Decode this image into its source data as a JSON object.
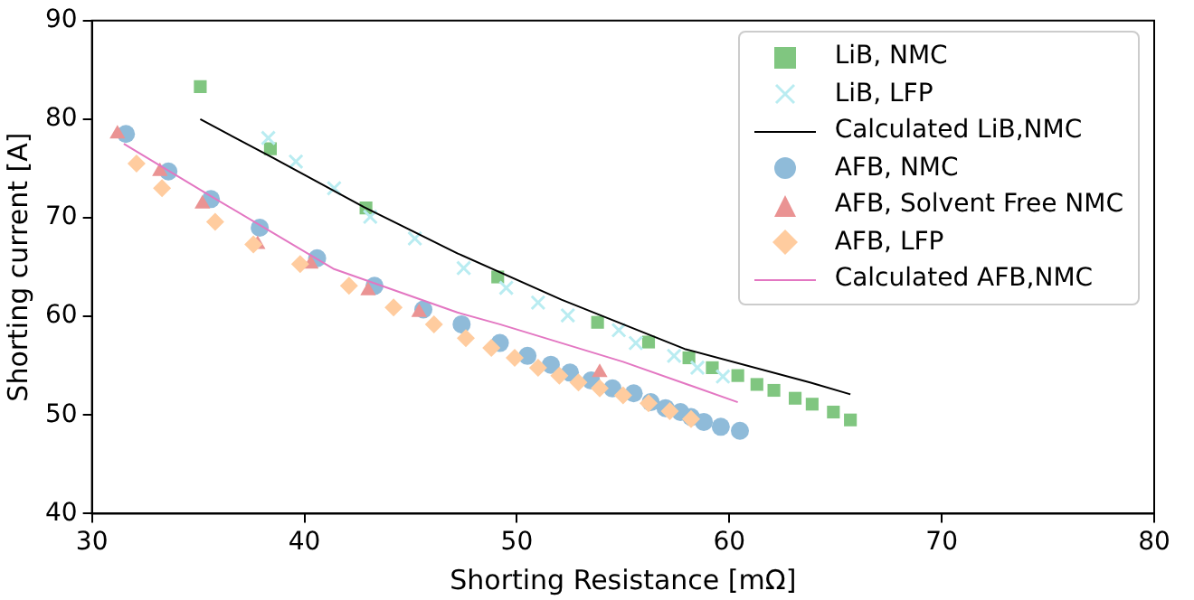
{
  "chart_data": {
    "type": "scatter",
    "xlabel": "Shorting Resistance [mΩ]",
    "ylabel": "Shorting current [A]",
    "xlim": [
      30,
      80
    ],
    "xticks": [
      30,
      40,
      50,
      60,
      70,
      80
    ],
    "ylim": [
      40,
      90
    ],
    "yticks": [
      40,
      50,
      60,
      70,
      80,
      90
    ],
    "grid": false,
    "legend": "top right",
    "series": [
      {
        "name": "LiB, NMC",
        "color": "#80c680",
        "marker": "square",
        "x": [
          35.1,
          38.4,
          42.9,
          49.1,
          53.8,
          56.2,
          58.1,
          59.2,
          60.4,
          61.3,
          62.1,
          63.1,
          63.9,
          64.9,
          65.7
        ],
        "values": [
          83.3,
          77.0,
          71.0,
          64.0,
          59.4,
          57.4,
          55.8,
          54.8,
          54.0,
          53.1,
          52.5,
          51.7,
          51.1,
          50.3,
          49.5
        ]
      },
      {
        "name": "LiB, LFP",
        "color": "#b9ecf1",
        "marker": "cross",
        "x": [
          38.3,
          39.6,
          41.4,
          43.1,
          45.2,
          47.5,
          49.5,
          51.0,
          52.4,
          54.8,
          55.6,
          57.4,
          58.5,
          59.7
        ],
        "values": [
          78.1,
          75.7,
          73.0,
          70.1,
          67.9,
          64.9,
          62.9,
          61.4,
          60.1,
          58.6,
          57.3,
          56.0,
          54.8,
          53.9
        ]
      },
      {
        "name": "Calculated LiB,NMC",
        "type": "line",
        "color": "#000000",
        "marker": "none",
        "x": [
          35.1,
          38.5,
          42.8,
          47.2,
          52.1,
          57.9,
          63.8,
          65.7
        ],
        "values": [
          80.0,
          76.1,
          71.1,
          66.4,
          61.7,
          56.7,
          53.3,
          52.1
        ]
      },
      {
        "name": "AFB, NMC",
        "color": "#8fbbd9",
        "marker": "circle",
        "x": [
          31.6,
          33.6,
          35.6,
          37.9,
          40.6,
          43.3,
          45.6,
          47.4,
          49.2,
          50.5,
          51.6,
          52.5,
          53.5,
          54.5,
          55.5,
          56.3,
          57.0,
          57.7,
          58.2,
          58.8,
          59.6,
          60.5
        ],
        "values": [
          78.5,
          74.7,
          71.9,
          69.0,
          65.9,
          63.1,
          60.7,
          59.2,
          57.3,
          56.0,
          55.1,
          54.3,
          53.5,
          52.7,
          52.2,
          51.3,
          50.7,
          50.3,
          49.8,
          49.3,
          48.8,
          48.4
        ]
      },
      {
        "name": "AFB, Solvent Free NMC",
        "color": "#ea9393",
        "marker": "triangle",
        "x": [
          31.2,
          33.2,
          35.2,
          37.8,
          40.3,
          43.0,
          45.4,
          53.9
        ],
        "values": [
          78.5,
          74.7,
          71.4,
          67.3,
          65.3,
          62.6,
          60.4,
          54.3
        ]
      },
      {
        "name": "AFB, LFP",
        "color": "#ffcc9f",
        "marker": "diamond",
        "x": [
          32.1,
          33.3,
          35.8,
          37.6,
          39.8,
          42.1,
          44.2,
          46.1,
          47.6,
          48.8,
          49.9,
          51.0,
          52.0,
          52.9,
          53.9,
          55.0,
          56.2,
          57.2,
          58.2
        ],
        "values": [
          75.5,
          73.0,
          69.6,
          67.3,
          65.3,
          63.1,
          60.9,
          59.2,
          57.8,
          56.8,
          55.8,
          54.8,
          54.0,
          53.3,
          52.7,
          52.0,
          51.2,
          50.4,
          49.6
        ]
      },
      {
        "name": "Calculated AFB,NMC",
        "type": "line",
        "color": "#e377c2",
        "marker": "none",
        "x": [
          31.5,
          35.6,
          41.4,
          47.2,
          49.2,
          55.0,
          60.4
        ],
        "values": [
          77.5,
          72.2,
          64.8,
          60.4,
          59.2,
          55.4,
          51.3
        ]
      }
    ]
  }
}
